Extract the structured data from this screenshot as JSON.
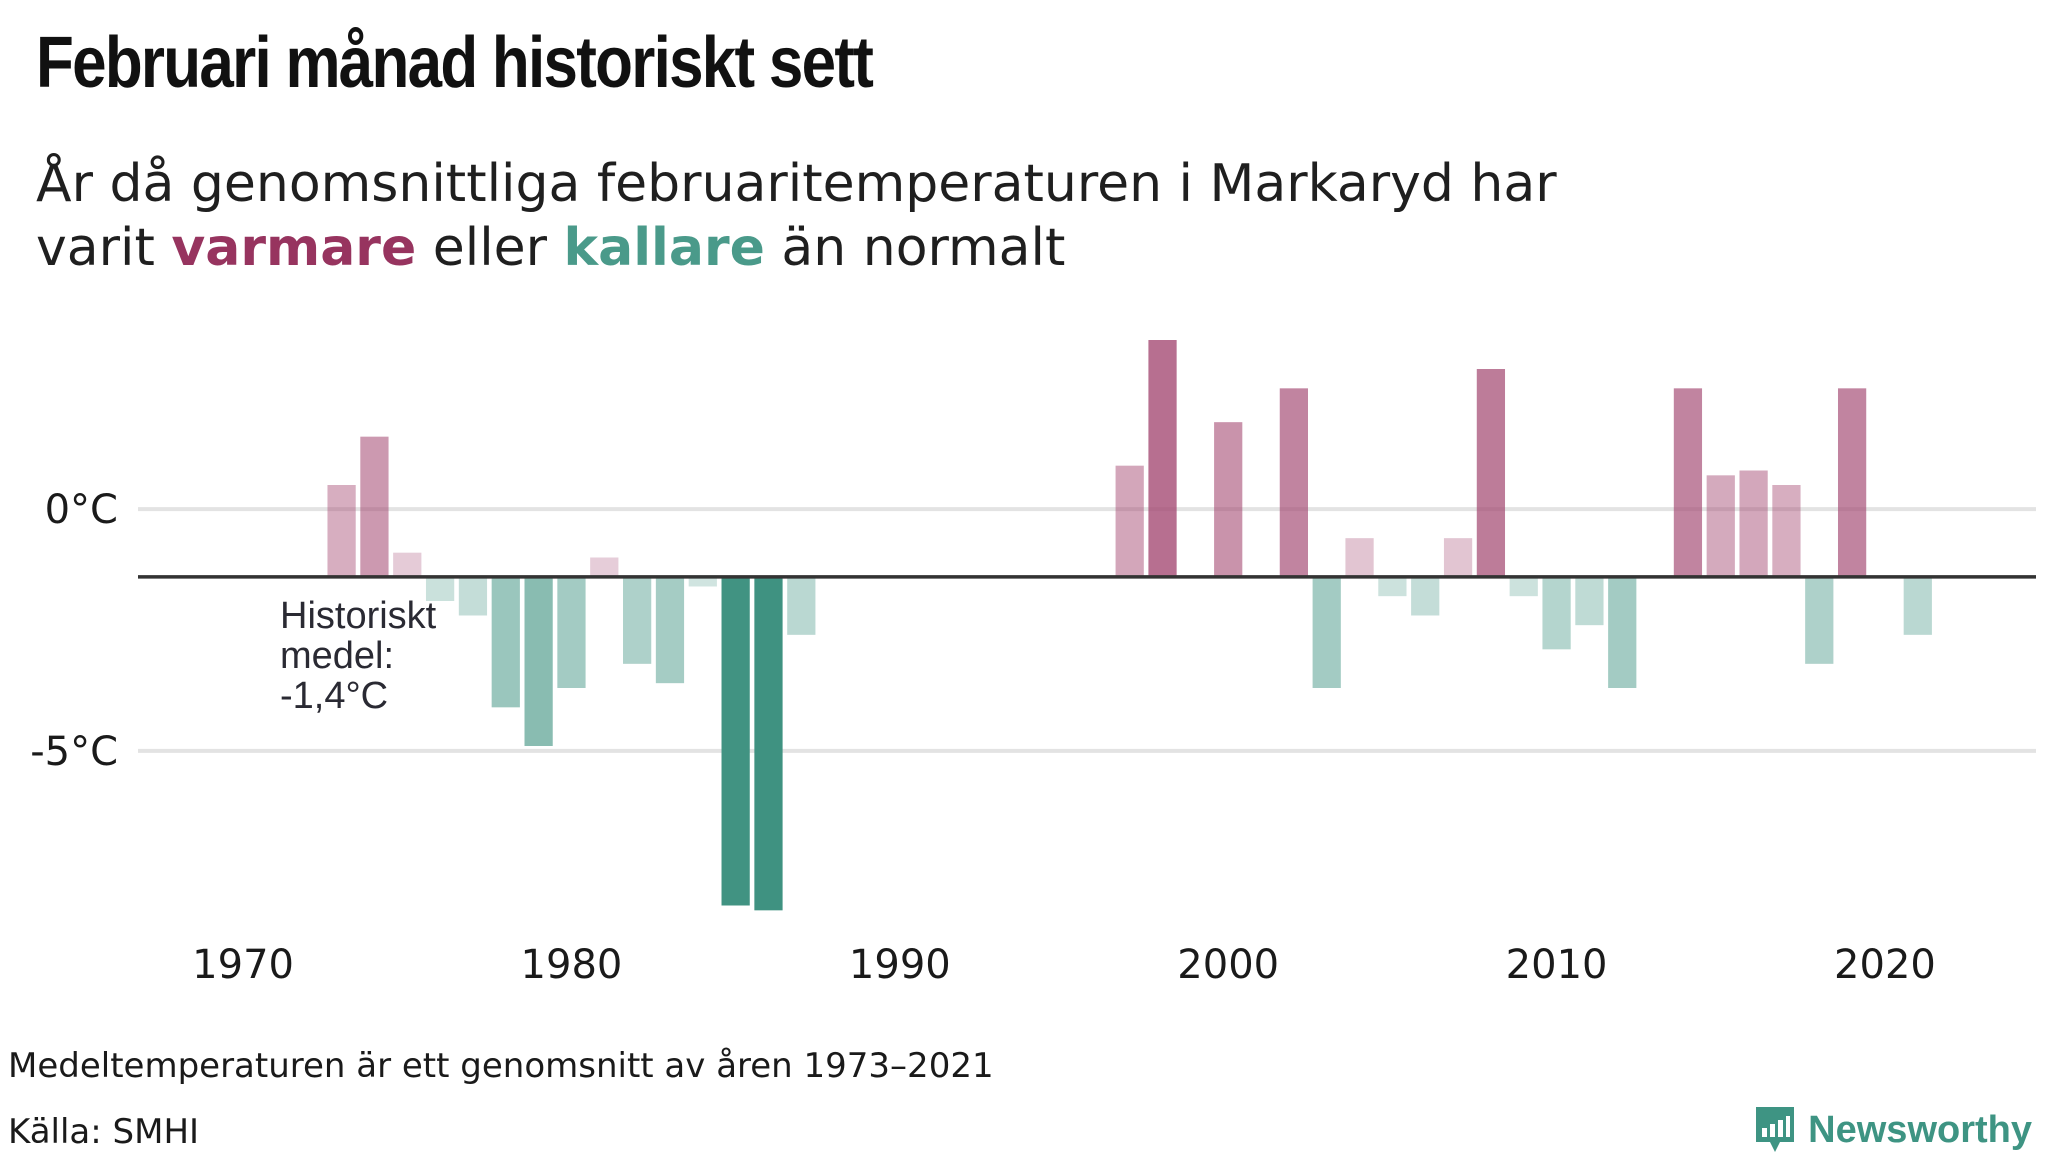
{
  "title": "Februari månad historiskt sett",
  "subtitle": {
    "line1": "År då genomsnittliga februaritemperaturen i Markaryd har",
    "line2_a": "varit ",
    "warm": "varmare",
    "line2_b": " eller ",
    "cold": "kallare",
    "line2_c": " än normalt"
  },
  "annotation": [
    "Historiskt",
    "medel:",
    "-1,4°C"
  ],
  "footnote": "Medeltemperaturen är ett genomsnitt av åren 1973–2021",
  "source": "Källa: SMHI",
  "brand": "Newsworthy",
  "colors": {
    "warm": "#a2456f",
    "cold": "#3f9281",
    "grid": "#e3e3e3",
    "baseline": "#333333",
    "brand": "#3e9483"
  },
  "chart_data": {
    "type": "bar",
    "title": "",
    "baseline": -1.4,
    "ylim": [
      -8.5,
      3.5
    ],
    "xlim": [
      1966.8,
      2024.6
    ],
    "y_ticks": [
      {
        "value": 0,
        "label": "0°C"
      },
      {
        "value": -5,
        "label": "-5°C"
      }
    ],
    "x_ticks": [
      1970,
      1980,
      1990,
      2000,
      2010,
      2020
    ],
    "grid": true,
    "x": [
      1973,
      1974,
      1975,
      1976,
      1977,
      1978,
      1979,
      1980,
      1981,
      1982,
      1983,
      1984,
      1985,
      1986,
      1987,
      1997,
      1998,
      2000,
      2002,
      2003,
      2004,
      2005,
      2006,
      2007,
      2008,
      2009,
      2010,
      2011,
      2012,
      2014,
      2015,
      2016,
      2017,
      2018,
      2019,
      2021
    ],
    "values": [
      0.5,
      1.5,
      -0.9,
      -1.9,
      -2.2,
      -4.1,
      -4.9,
      -3.7,
      -1.0,
      -3.2,
      -3.6,
      -1.6,
      -8.2,
      -8.3,
      -2.6,
      0.9,
      3.5,
      1.8,
      2.5,
      -3.7,
      -0.6,
      -1.8,
      -2.2,
      -0.6,
      2.9,
      -1.8,
      -2.9,
      -2.4,
      -3.7,
      2.5,
      0.7,
      0.8,
      0.5,
      -3.2,
      2.5,
      -2.6
    ]
  }
}
